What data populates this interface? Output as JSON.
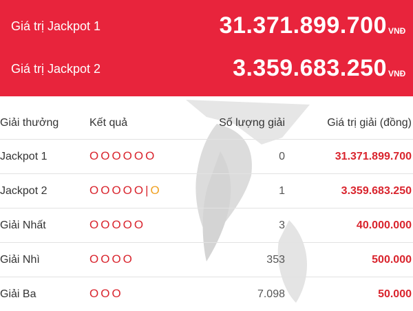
{
  "jackpot_banner": {
    "jackpot1_label": "Giá trị Jackpot 1",
    "jackpot1_value": "31.371.899.700",
    "jackpot2_label": "Giá trị Jackpot 2",
    "jackpot2_value": "3.359.683.250",
    "unit": "VNĐ"
  },
  "table": {
    "headers": [
      "Giải thưởng",
      "Kết quả",
      "Số lượng giải",
      "Giá trị giải (đồng)"
    ],
    "rows": [
      {
        "name": "Jackpot 1",
        "result": "OOOOOO",
        "separator": "",
        "extra": "",
        "count": "0",
        "prize": "31.371.899.700"
      },
      {
        "name": "Jackpot 2",
        "result": "OOOOO",
        "separator": "|",
        "extra": "O",
        "count": "1",
        "prize": "3.359.683.250"
      },
      {
        "name": "Giải Nhất",
        "result": "OOOOO",
        "separator": "",
        "extra": "",
        "count": "3",
        "prize": "40.000.000"
      },
      {
        "name": "Giải Nhì",
        "result": "OOOO",
        "separator": "",
        "extra": "",
        "count": "353",
        "prize": "500.000"
      },
      {
        "name": "Giải Ba",
        "result": "OOO",
        "separator": "",
        "extra": "",
        "count": "7.098",
        "prize": "50.000"
      }
    ]
  },
  "colors": {
    "banner_bg": "#e8243c",
    "accent_red": "#d9242d",
    "accent_orange": "#f0a020"
  }
}
